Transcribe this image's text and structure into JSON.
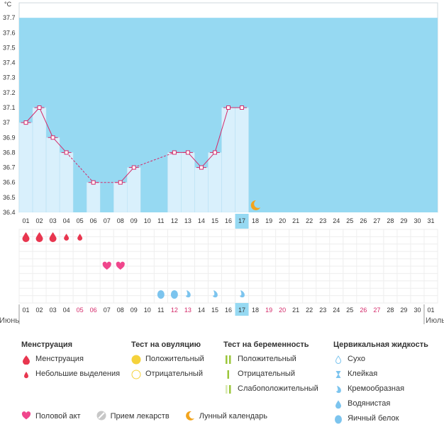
{
  "chart_data": {
    "type": "line",
    "unit": "°C",
    "ylim": [
      36.4,
      37.8
    ],
    "yticks": [
      "36.4",
      "36.5",
      "36.6",
      "36.7",
      "36.8",
      "36.9",
      "37",
      "37.1",
      "37.2",
      "37.3",
      "37.4",
      "37.5",
      "37.6",
      "37.7"
    ],
    "days": [
      "01",
      "02",
      "03",
      "04",
      "05",
      "06",
      "07",
      "08",
      "09",
      "10",
      "11",
      "12",
      "13",
      "14",
      "15",
      "16",
      "17",
      "18",
      "19",
      "20",
      "21",
      "22",
      "23",
      "24",
      "25",
      "26",
      "27",
      "28",
      "29",
      "30",
      "31"
    ],
    "temperature": {
      "1": 37.0,
      "2": 37.1,
      "3": 36.9,
      "4": 36.8,
      "6": 36.6,
      "8": 36.6,
      "9": 36.7,
      "12": 36.8,
      "13": 36.8,
      "14": 36.7,
      "15": 36.8,
      "16": 37.1,
      "17": 37.1
    },
    "dashed_segments": [
      [
        4,
        6
      ],
      [
        6,
        8
      ],
      [
        9,
        12
      ]
    ],
    "today": 17,
    "moon_day": 18,
    "menstruation": {
      "1": "full",
      "2": "full",
      "3": "full",
      "4": "light",
      "5": "light"
    },
    "sex_days": [
      7,
      8
    ],
    "cervical_fluid": {
      "11": "egg-white",
      "12": "egg-white",
      "13": "creamy",
      "15": "creamy",
      "17": "creamy"
    },
    "bottom_days": [
      "01",
      "02",
      "03",
      "04",
      "05",
      "06",
      "07",
      "08",
      "09",
      "10",
      "11",
      "12",
      "13",
      "14",
      "15",
      "16",
      "17",
      "18",
      "19",
      "20",
      "21",
      "22",
      "23",
      "24",
      "25",
      "26",
      "27",
      "28",
      "29",
      "30",
      "01"
    ],
    "weekend_days": [
      5,
      6,
      12,
      13,
      19,
      20,
      26,
      27
    ],
    "month_left": "Июнь",
    "month_right": "Июль"
  },
  "legend": {
    "menstruation": {
      "title": "Менструация",
      "full": "Менструация",
      "light": "Небольшие выделения"
    },
    "ovulation": {
      "title": "Тест на овуляцию",
      "positive": "Положительный",
      "negative": "Отрицательный"
    },
    "pregnancy": {
      "title": "Тест на беременность",
      "positive": "Положительный",
      "negative": "Отрицательный",
      "weak": "Слабоположительный"
    },
    "cervical": {
      "title": "Цервикальная жидкость",
      "dry": "Сухо",
      "sticky": "Клейкая",
      "creamy": "Кремообразная",
      "watery": "Водянистая",
      "egg_white": "Яичный белок"
    },
    "sex": "Половой акт",
    "medication": "Прием лекарств",
    "lunar": "Лунный календарь"
  },
  "colors": {
    "sky": "#96d9f2",
    "bar": "#d9f0fc",
    "bar_edge": "#b4def2",
    "line": "#d42a6a",
    "blood": "#e8364f",
    "heart": "#f0468c",
    "drop": "#7cc4ee",
    "moon": "#f2a41d",
    "weekend": "#d42a6a",
    "today": "#96d9f2"
  }
}
